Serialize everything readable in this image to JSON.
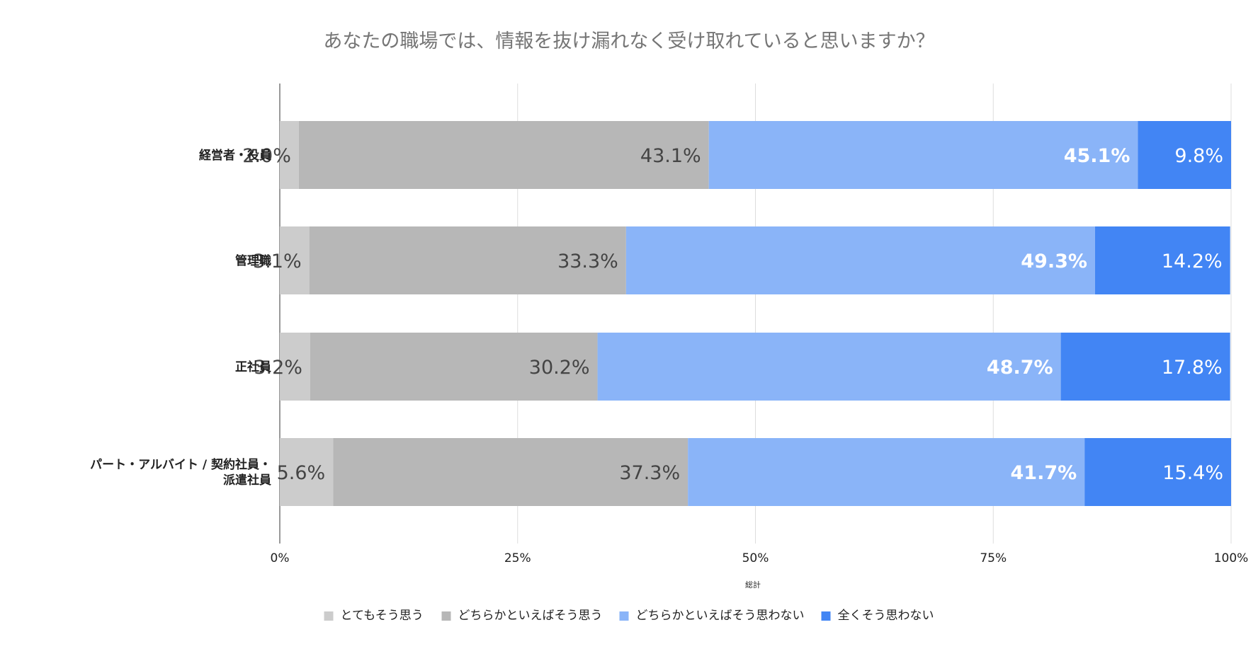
{
  "chart_data": {
    "type": "bar",
    "orientation": "horizontal",
    "stacked": "percent",
    "title": "あなたの職場では、情報を抜け漏れなく受け取れていると思いますか？",
    "xlabel": "総計",
    "ylabel": "",
    "xlim": [
      0,
      100
    ],
    "x_ticks": [
      "0%",
      "25%",
      "50%",
      "75%",
      "100%"
    ],
    "grid": true,
    "legend_position": "bottom",
    "categories": [
      "経営者・役員",
      "管理職",
      "正社員",
      "パート・アルバイト / 契約社員・派遣社員"
    ],
    "series": [
      {
        "name": "とてもそう思う",
        "color": "#cccccc",
        "values": [
          2.0,
          3.1,
          3.2,
          5.6
        ],
        "labels": [
          "2.0%",
          "3.1%",
          "3.2%",
          "5.6%"
        ]
      },
      {
        "name": "どちらかといえばそう思う",
        "color": "#b7b7b7",
        "values": [
          43.1,
          33.3,
          30.2,
          37.3
        ],
        "labels": [
          "43.1%",
          "33.3%",
          "30.2%",
          "37.3%"
        ]
      },
      {
        "name": "どちらかといえばそう思わない",
        "color": "#8ab4f8",
        "values": [
          45.1,
          49.3,
          48.7,
          41.7
        ],
        "labels": [
          "45.1%",
          "49.3%",
          "48.7%",
          "41.7%"
        ]
      },
      {
        "name": "全くそう思わない",
        "color": "#4285f4",
        "values": [
          9.8,
          14.2,
          17.8,
          15.4
        ],
        "labels": [
          "9.8%",
          "14.2%",
          "17.8%",
          "15.4%"
        ]
      }
    ]
  }
}
